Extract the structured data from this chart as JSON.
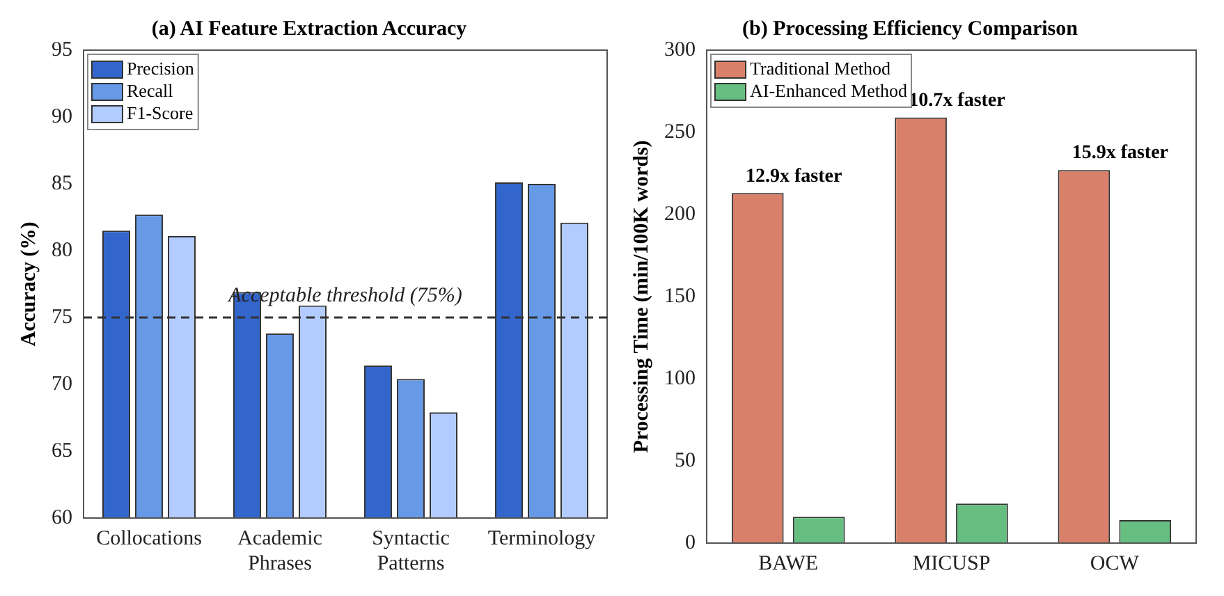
{
  "chart_data": [
    {
      "type": "bar",
      "title": "(a) AI Feature Extraction Accuracy",
      "ylabel": "Accuracy (%)",
      "categories": [
        "Collocations",
        "Academic Phrases",
        "Syntactic Patterns",
        "Terminology"
      ],
      "series": [
        {
          "name": "Precision",
          "color": "#3366cc",
          "values": [
            81.5,
            76.9,
            71.4,
            85.1
          ]
        },
        {
          "name": "Recall",
          "color": "#6699e6",
          "values": [
            82.7,
            73.8,
            70.4,
            85.0
          ]
        },
        {
          "name": "F1-Score",
          "color": "#b3ccff",
          "values": [
            81.1,
            75.9,
            67.9,
            82.1
          ]
        }
      ],
      "ylim": [
        60,
        95
      ],
      "yticks": [
        60,
        65,
        70,
        75,
        80,
        85,
        90,
        95
      ],
      "grid": false,
      "legend": "top left",
      "ref_lines": [
        {
          "axis": "y",
          "value": 75,
          "label": "Acceptable threshold (75%)",
          "color": "#333333",
          "line_style": "dashed"
        }
      ]
    },
    {
      "type": "bar",
      "title": "(b) Processing Efficiency Comparison",
      "ylabel": "Processing Time (min/100K words)",
      "categories": [
        "BAWE",
        "MICUSP",
        "OCW"
      ],
      "series": [
        {
          "name": "Traditional Method",
          "color": "#d9806a",
          "values": [
            213,
            259,
            227
          ]
        },
        {
          "name": "AI-Enhanced Method",
          "color": "#66bf80",
          "values": [
            16,
            24,
            14
          ]
        }
      ],
      "ylim": [
        0,
        300
      ],
      "yticks": [
        0,
        50,
        100,
        150,
        200,
        250,
        300
      ],
      "grid": false,
      "legend": "top left",
      "annotations": [
        "12.9x faster",
        "10.7x faster",
        "15.9x faster"
      ]
    }
  ]
}
